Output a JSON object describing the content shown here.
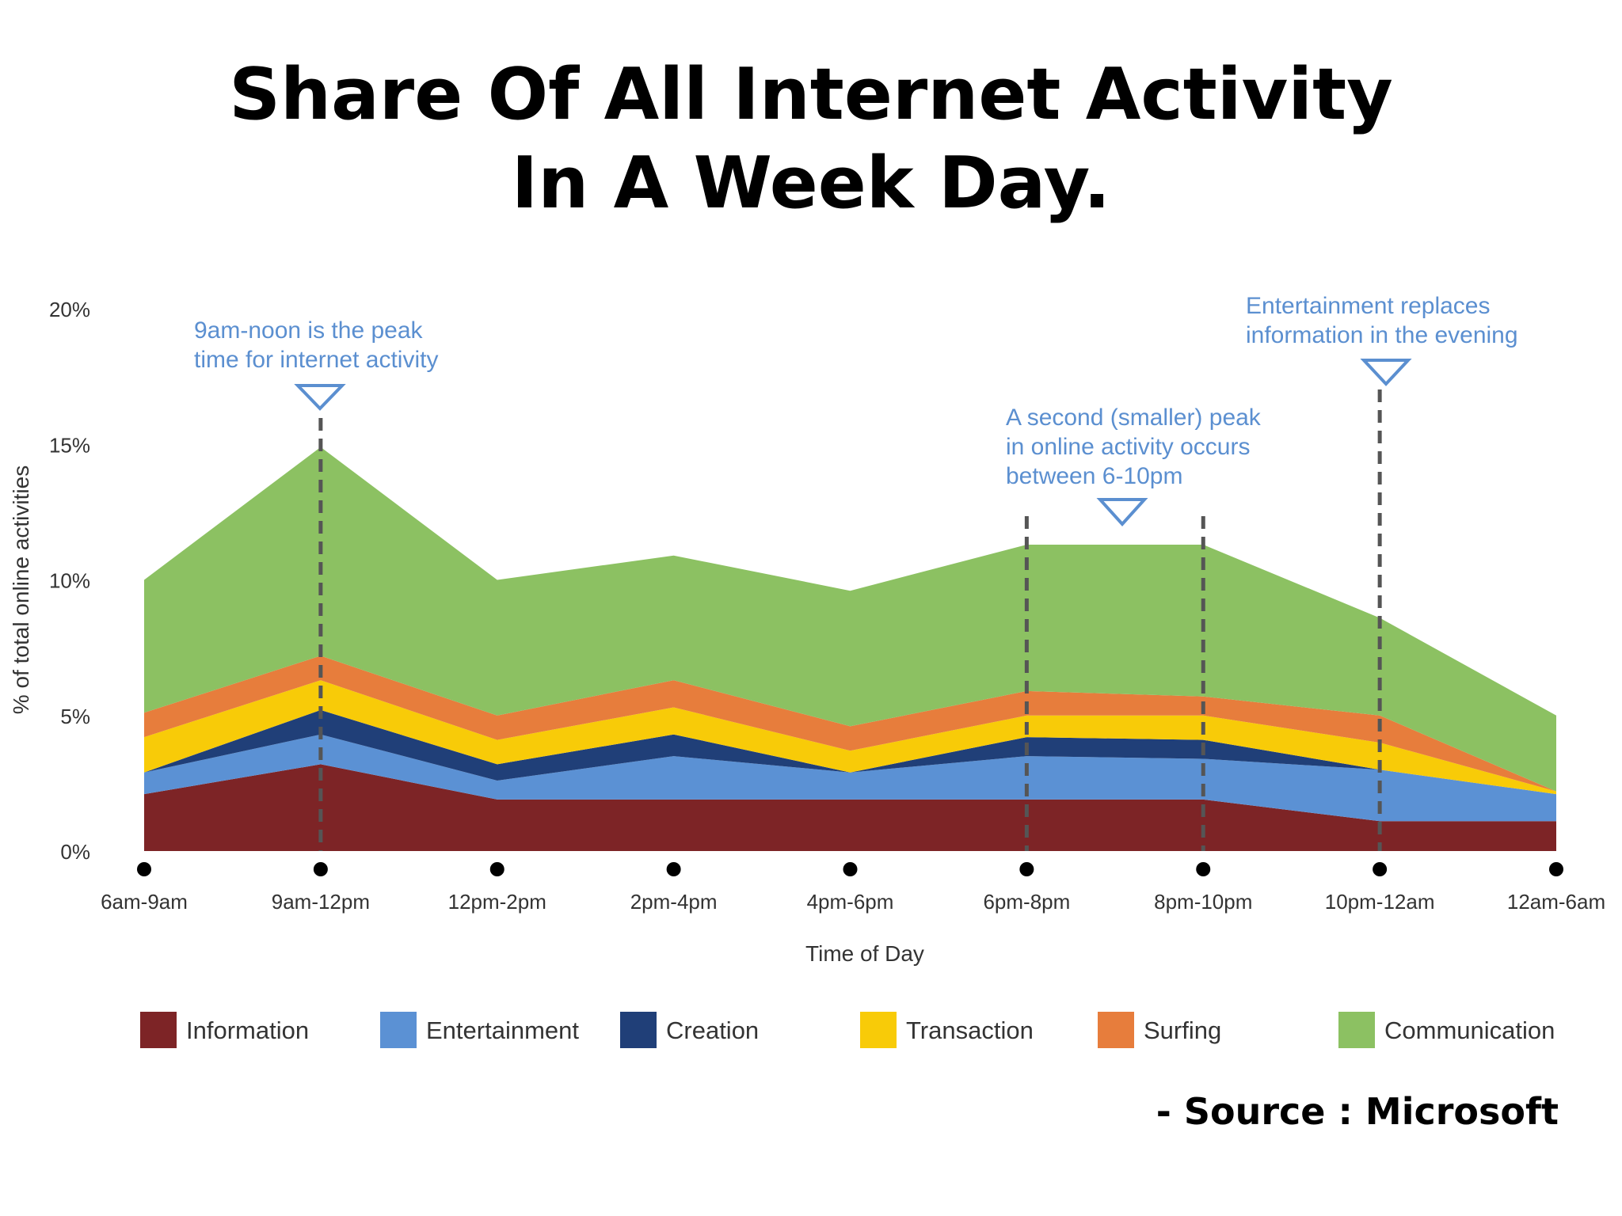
{
  "title_line1": "Share Of All Internet Activity",
  "title_line2": "In A Week Day.",
  "source": "- Source : Microsoft",
  "colors": {
    "Information": "#7d2426",
    "Entertainment": "#5b91d4",
    "Creation": "#203f78",
    "Transaction": "#f8cb08",
    "Surfing": "#e77d3c",
    "Communication": "#8cc162",
    "annotation": "#5b8fd0",
    "guide": "#555555"
  },
  "annotations": [
    {
      "lines": [
        "9am-noon is the peak",
        "time for internet activity"
      ]
    },
    {
      "lines": [
        "A second (smaller) peak",
        "in online activity occurs",
        "between 6-10pm"
      ]
    },
    {
      "lines": [
        "Entertainment replaces",
        "information in the evening"
      ]
    }
  ],
  "chart_data": {
    "type": "area",
    "stacked": true,
    "categories": [
      "6am-9am",
      "9am-12pm",
      "12pm-2pm",
      "2pm-4pm",
      "4pm-6pm",
      "6pm-8pm",
      "8pm-10pm",
      "10pm-12am",
      "12am-6am"
    ],
    "xlabel": "Time of Day",
    "ylabel": "% of total online activities",
    "ylim": [
      0,
      20
    ],
    "yticks": [
      0,
      5,
      10,
      15,
      20
    ],
    "ytick_labels": [
      "0%",
      "5%",
      "10%",
      "15%",
      "20%"
    ],
    "legend_position": "bottom",
    "guide_lines_at": [
      "9am-12pm",
      "6pm-8pm",
      "8pm-10pm",
      "10pm-12am"
    ],
    "series": [
      {
        "name": "Information",
        "values": [
          2.1,
          3.2,
          1.9,
          1.9,
          1.9,
          1.9,
          1.9,
          1.1,
          1.1
        ]
      },
      {
        "name": "Entertainment",
        "values": [
          0.8,
          1.1,
          0.7,
          1.6,
          1.0,
          1.6,
          1.5,
          1.9,
          1.0
        ]
      },
      {
        "name": "Creation",
        "values": [
          0.0,
          0.9,
          0.6,
          0.8,
          0.0,
          0.7,
          0.7,
          0.0,
          0.0
        ]
      },
      {
        "name": "Transaction",
        "values": [
          1.3,
          1.1,
          0.9,
          1.0,
          0.8,
          0.8,
          0.9,
          1.0,
          0.1
        ]
      },
      {
        "name": "Surfing",
        "values": [
          0.9,
          0.9,
          0.9,
          1.0,
          0.9,
          0.9,
          0.7,
          1.0,
          0.0
        ]
      },
      {
        "name": "Communication",
        "values": [
          4.9,
          7.7,
          5.0,
          4.6,
          5.0,
          5.4,
          5.6,
          3.6,
          2.8
        ]
      }
    ]
  }
}
